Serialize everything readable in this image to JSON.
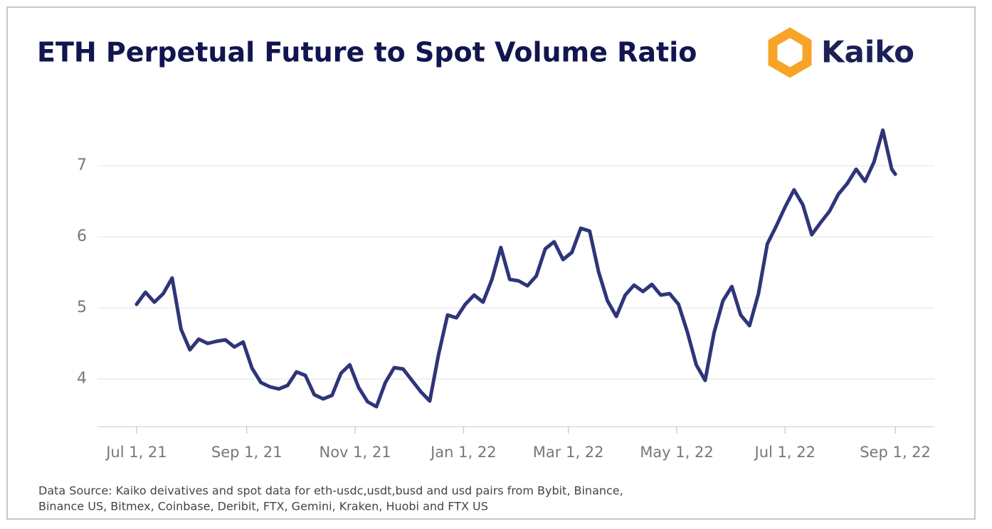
{
  "chart_data": {
    "type": "line",
    "title": "ETH Perpetual Future to Spot Volume Ratio",
    "brand": "Kaiko",
    "source_lines": [
      "Data Source: Kaiko deivatives and spot data for eth-usdc,usdt,busd and usd pairs from Bybit, Binance,",
      "Binance US, Bitmex, Coinbase, Deribit, FTX, Gemini, Kraken, Huobi and FTX US"
    ],
    "x": [
      "2021-07-01",
      "2021-07-06",
      "2021-07-11",
      "2021-07-16",
      "2021-07-21",
      "2021-07-26",
      "2021-07-31",
      "2021-08-05",
      "2021-08-10",
      "2021-08-15",
      "2021-08-20",
      "2021-08-25",
      "2021-08-30",
      "2021-09-04",
      "2021-09-09",
      "2021-09-14",
      "2021-09-19",
      "2021-09-24",
      "2021-09-29",
      "2021-10-04",
      "2021-10-09",
      "2021-10-14",
      "2021-10-19",
      "2021-10-24",
      "2021-10-29",
      "2021-11-03",
      "2021-11-08",
      "2021-11-13",
      "2021-11-18",
      "2021-11-23",
      "2021-11-28",
      "2021-12-03",
      "2021-12-08",
      "2021-12-13",
      "2021-12-18",
      "2021-12-23",
      "2021-12-28",
      "2022-01-02",
      "2022-01-07",
      "2022-01-12",
      "2022-01-17",
      "2022-01-22",
      "2022-01-27",
      "2022-02-01",
      "2022-02-06",
      "2022-02-11",
      "2022-02-16",
      "2022-02-21",
      "2022-02-26",
      "2022-03-03",
      "2022-03-08",
      "2022-03-13",
      "2022-03-18",
      "2022-03-23",
      "2022-03-28",
      "2022-04-02",
      "2022-04-07",
      "2022-04-12",
      "2022-04-17",
      "2022-04-22",
      "2022-04-27",
      "2022-05-02",
      "2022-05-07",
      "2022-05-12",
      "2022-05-17",
      "2022-05-22",
      "2022-05-27",
      "2022-06-01",
      "2022-06-06",
      "2022-06-11",
      "2022-06-16",
      "2022-06-21",
      "2022-06-26",
      "2022-07-01",
      "2022-07-06",
      "2022-07-11",
      "2022-07-16",
      "2022-07-21",
      "2022-07-26",
      "2022-07-31",
      "2022-08-05",
      "2022-08-10",
      "2022-08-15",
      "2022-08-20",
      "2022-08-25",
      "2022-08-30",
      "2022-09-01"
    ],
    "series": [
      {
        "color": "#2e3579",
        "values": [
          5.05,
          5.22,
          5.08,
          5.2,
          5.42,
          4.7,
          4.41,
          4.56,
          4.5,
          4.53,
          4.55,
          4.45,
          4.52,
          4.15,
          3.95,
          3.89,
          3.86,
          3.91,
          4.1,
          4.05,
          3.78,
          3.72,
          3.77,
          4.08,
          4.2,
          3.88,
          3.68,
          3.61,
          3.95,
          4.16,
          4.14,
          3.98,
          3.82,
          3.69,
          4.35,
          4.9,
          4.86,
          5.05,
          5.18,
          5.08,
          5.4,
          5.85,
          5.4,
          5.38,
          5.31,
          5.45,
          5.83,
          5.93,
          5.68,
          5.78,
          6.12,
          6.08,
          5.51,
          5.1,
          4.88,
          5.18,
          5.32,
          5.23,
          5.33,
          5.18,
          5.2,
          5.05,
          4.66,
          4.2,
          3.98,
          4.65,
          5.1,
          5.3,
          4.9,
          4.75,
          5.2,
          5.9,
          6.15,
          6.42,
          6.66,
          6.45,
          6.03,
          6.2,
          6.36,
          6.6,
          6.75,
          6.95,
          6.78,
          7.05,
          7.5,
          6.95,
          6.88
        ]
      }
    ],
    "xlim": [
      "2021-06-09",
      "2022-09-23"
    ],
    "xticks": [
      {
        "value": "2021-07-01",
        "label": "Jul 1, 21"
      },
      {
        "value": "2021-09-01",
        "label": "Sep 1, 21"
      },
      {
        "value": "2021-11-01",
        "label": "Nov 1, 21"
      },
      {
        "value": "2022-01-01",
        "label": "Jan 1, 22"
      },
      {
        "value": "2022-03-01",
        "label": "Mar 1, 22"
      },
      {
        "value": "2022-05-01",
        "label": "May 1, 22"
      },
      {
        "value": "2022-07-01",
        "label": "Jul 1, 22"
      },
      {
        "value": "2022-09-01",
        "label": "Sep 1, 22"
      }
    ],
    "ylim": [
      3.33,
      7.75
    ],
    "yticks": [
      4,
      5,
      6,
      7
    ],
    "grid": true
  }
}
